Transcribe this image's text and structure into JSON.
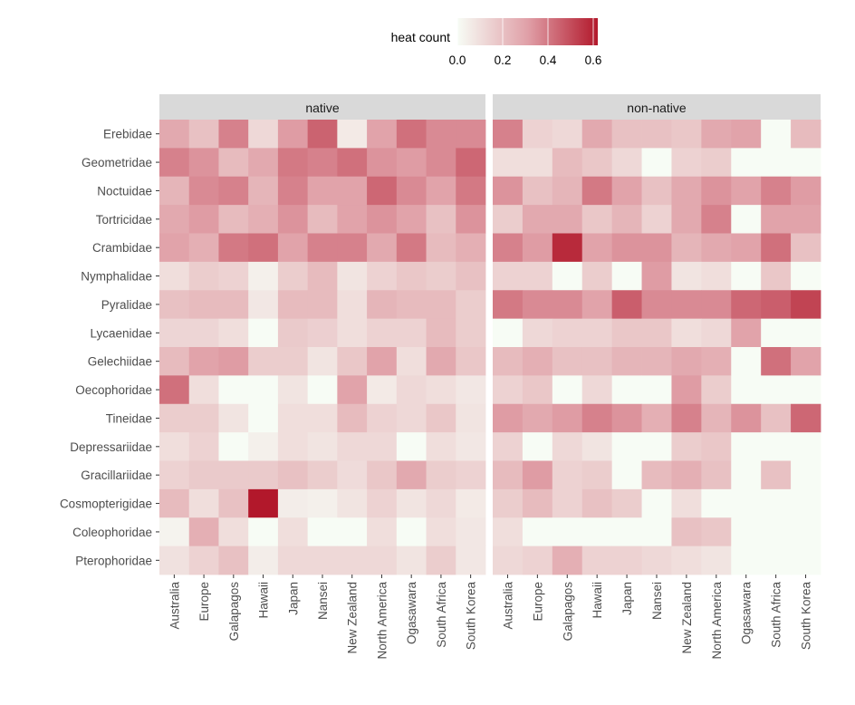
{
  "chart_data": {
    "type": "heatmap",
    "legend": {
      "title": "heat count",
      "ticks": [
        "0.0",
        "0.2",
        "0.4",
        "0.6"
      ],
      "min": 0,
      "max": 0.62,
      "low_color": "#f7fcf5",
      "high_color": "#b2182b"
    },
    "panels": [
      "native",
      "non-native"
    ],
    "regions": [
      "Australia",
      "Europe",
      "Galapagos",
      "Hawaii",
      "Japan",
      "Nansei",
      "New Zealand",
      "North America",
      "Ogasawara",
      "South Africa",
      "South Korea"
    ],
    "families": [
      "Erebidae",
      "Geometridae",
      "Noctuidae",
      "Tortricidae",
      "Crambidae",
      "Nymphalidae",
      "Pyralidae",
      "Lycaenidae",
      "Gelechiidae",
      "Oecophoridae",
      "Tineidae",
      "Depressariidae",
      "Gracillariidae",
      "Cosmopterigidae",
      "Coleophoridae",
      "Pterophoridae"
    ],
    "values": {
      "native": [
        [
          0.28,
          0.2,
          0.38,
          0.12,
          0.32,
          0.45,
          0.06,
          0.3,
          0.42,
          0.36,
          0.36
        ],
        [
          0.38,
          0.34,
          0.22,
          0.28,
          0.4,
          0.38,
          0.42,
          0.34,
          0.32,
          0.36,
          0.44
        ],
        [
          0.24,
          0.36,
          0.38,
          0.24,
          0.38,
          0.3,
          0.3,
          0.44,
          0.36,
          0.3,
          0.4
        ],
        [
          0.28,
          0.32,
          0.22,
          0.26,
          0.34,
          0.22,
          0.3,
          0.34,
          0.3,
          0.2,
          0.34
        ],
        [
          0.3,
          0.26,
          0.4,
          0.42,
          0.3,
          0.38,
          0.38,
          0.28,
          0.4,
          0.22,
          0.26
        ],
        [
          0.1,
          0.16,
          0.14,
          0.04,
          0.16,
          0.22,
          0.08,
          0.14,
          0.18,
          0.16,
          0.2
        ],
        [
          0.2,
          0.22,
          0.22,
          0.07,
          0.22,
          0.22,
          0.1,
          0.24,
          0.22,
          0.22,
          0.16
        ],
        [
          0.13,
          0.13,
          0.1,
          0.0,
          0.17,
          0.15,
          0.1,
          0.14,
          0.14,
          0.22,
          0.16
        ],
        [
          0.22,
          0.3,
          0.32,
          0.16,
          0.16,
          0.08,
          0.18,
          0.3,
          0.1,
          0.28,
          0.18
        ],
        [
          0.42,
          0.1,
          0.0,
          0.0,
          0.08,
          0.0,
          0.3,
          0.06,
          0.12,
          0.1,
          0.07
        ],
        [
          0.16,
          0.16,
          0.08,
          0.0,
          0.1,
          0.1,
          0.22,
          0.14,
          0.12,
          0.18,
          0.08
        ],
        [
          0.1,
          0.14,
          0.0,
          0.04,
          0.1,
          0.08,
          0.12,
          0.12,
          0.0,
          0.1,
          0.07
        ],
        [
          0.14,
          0.17,
          0.17,
          0.17,
          0.2,
          0.16,
          0.11,
          0.18,
          0.28,
          0.16,
          0.14
        ],
        [
          0.22,
          0.1,
          0.2,
          0.62,
          0.05,
          0.04,
          0.08,
          0.14,
          0.08,
          0.12,
          0.06
        ],
        [
          0.03,
          0.26,
          0.1,
          0.0,
          0.1,
          0.0,
          0.0,
          0.1,
          0.0,
          0.1,
          0.07
        ],
        [
          0.09,
          0.14,
          0.2,
          0.05,
          0.12,
          0.12,
          0.12,
          0.12,
          0.08,
          0.16,
          0.07
        ]
      ],
      "non-native": [
        [
          0.38,
          0.14,
          0.12,
          0.28,
          0.2,
          0.2,
          0.18,
          0.28,
          0.3,
          0.0,
          0.22
        ],
        [
          0.1,
          0.1,
          0.22,
          0.18,
          0.12,
          0.0,
          0.14,
          0.16,
          0.0,
          0.0,
          0.0
        ],
        [
          0.34,
          0.2,
          0.24,
          0.4,
          0.3,
          0.2,
          0.28,
          0.34,
          0.3,
          0.38,
          0.32
        ],
        [
          0.16,
          0.28,
          0.28,
          0.18,
          0.24,
          0.14,
          0.28,
          0.38,
          0.0,
          0.3,
          0.3
        ],
        [
          0.38,
          0.32,
          0.58,
          0.3,
          0.34,
          0.34,
          0.24,
          0.28,
          0.3,
          0.42,
          0.2
        ],
        [
          0.14,
          0.14,
          0.0,
          0.16,
          0.0,
          0.32,
          0.08,
          0.1,
          0.0,
          0.18,
          0.0
        ],
        [
          0.4,
          0.36,
          0.36,
          0.3,
          0.46,
          0.36,
          0.36,
          0.36,
          0.44,
          0.46,
          0.52
        ],
        [
          0.0,
          0.12,
          0.14,
          0.14,
          0.18,
          0.18,
          0.1,
          0.12,
          0.3,
          0.0,
          0.0
        ],
        [
          0.22,
          0.26,
          0.2,
          0.2,
          0.24,
          0.24,
          0.28,
          0.26,
          0.0,
          0.42,
          0.3
        ],
        [
          0.14,
          0.18,
          0.0,
          0.12,
          0.0,
          0.0,
          0.32,
          0.16,
          0.0,
          0.0,
          0.0
        ],
        [
          0.32,
          0.28,
          0.32,
          0.38,
          0.34,
          0.26,
          0.38,
          0.24,
          0.34,
          0.2,
          0.44
        ],
        [
          0.14,
          0.0,
          0.12,
          0.08,
          0.0,
          0.0,
          0.16,
          0.18,
          0.0,
          0.0,
          0.0
        ],
        [
          0.22,
          0.32,
          0.14,
          0.16,
          0.0,
          0.22,
          0.26,
          0.2,
          0.0,
          0.2,
          0.0
        ],
        [
          0.16,
          0.22,
          0.14,
          0.2,
          0.16,
          0.0,
          0.1,
          0.0,
          0.0,
          0.0,
          0.0
        ],
        [
          0.1,
          0.0,
          0.0,
          0.0,
          0.0,
          0.0,
          0.2,
          0.18,
          0.0,
          0.0,
          0.0
        ],
        [
          0.12,
          0.14,
          0.26,
          0.14,
          0.14,
          0.12,
          0.1,
          0.08,
          0.0,
          0.0,
          0.0
        ]
      ]
    }
  }
}
